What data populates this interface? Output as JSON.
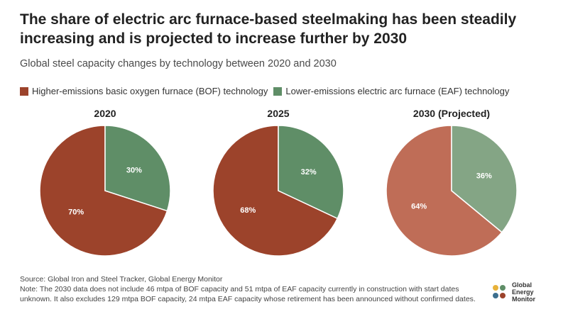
{
  "header": {
    "title": "The share of electric arc furnace-based steelmaking has been steadily increasing and is projected to increase further by 2030",
    "subtitle": "Global steel capacity changes by technology between 2020 and 2030"
  },
  "legend": {
    "bof_label": "Higher-emissions basic oxygen furnace (BOF) technology",
    "eaf_label": "Lower-emissions electric arc furnace (EAF) technology"
  },
  "colors": {
    "bof": "#9c432b",
    "bof_projected": "#bf6d57",
    "eaf": "#5f8e67",
    "eaf_projected": "#84a585"
  },
  "chart_data": [
    {
      "type": "pie",
      "title": "2020",
      "labels": [
        "Higher-emissions basic oxygen furnace (BOF) technology",
        "Lower-emissions electric arc furnace (EAF) technology"
      ],
      "values": [
        70,
        30
      ],
      "value_labels": [
        "70%",
        "30%"
      ],
      "projected": false
    },
    {
      "type": "pie",
      "title": "2025",
      "labels": [
        "Higher-emissions basic oxygen furnace (BOF) technology",
        "Lower-emissions electric arc furnace (EAF) technology"
      ],
      "values": [
        68,
        32
      ],
      "value_labels": [
        "68%",
        "32%"
      ],
      "projected": false
    },
    {
      "type": "pie",
      "title": "2030 (Projected)",
      "labels": [
        "Higher-emissions basic oxygen furnace (BOF) technology",
        "Lower-emissions electric arc furnace (EAF) technology"
      ],
      "values": [
        64,
        36
      ],
      "value_labels": [
        "64%",
        "36%"
      ],
      "projected": true
    }
  ],
  "footer": {
    "source": "Source: Global Iron and Steel Tracker, Global Energy Monitor",
    "note": "Note: The 2030 data does not include 46 mtpa of BOF capacity and 51 mtpa of EAF capacity currently in construction with start dates unknown. It also excludes 129 mtpa BOF capacity, 24 mtpa EAF capacity whose retirement has been announced without confirmed dates."
  },
  "logo": {
    "line1": "Global",
    "line2": "Energy",
    "line3": "Monitor"
  }
}
